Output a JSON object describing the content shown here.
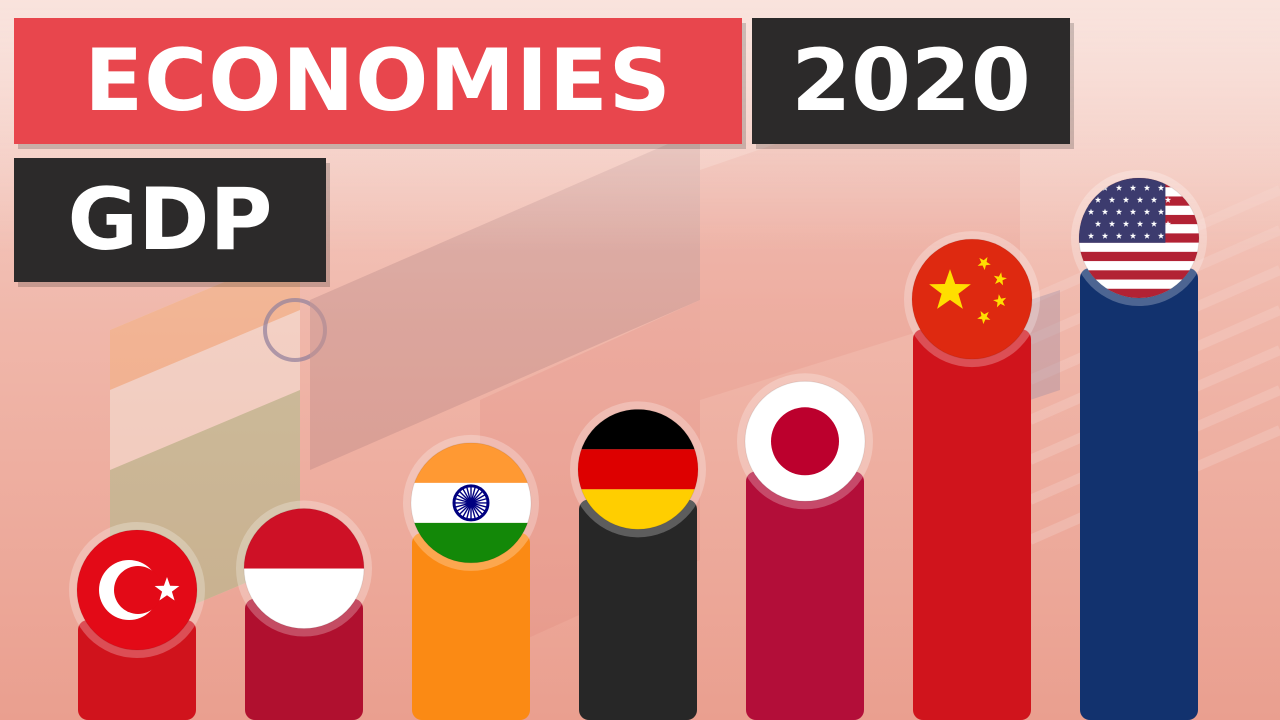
{
  "header": {
    "title": "ECONOMIES",
    "year": "2020",
    "subtitle": "GDP"
  },
  "colors": {
    "title_background": "#e8464d",
    "dark_background": "#2c2a2a"
  },
  "chart_data": {
    "type": "bar",
    "title": "ECONOMIES 2020 GDP",
    "categories": [
      "Turkey",
      "Indonesia",
      "India",
      "Germany",
      "Japan",
      "China",
      "United States"
    ],
    "series": [
      {
        "values": [
          0.72,
          1.06,
          2.66,
          3.85,
          5.06,
          14.72,
          20.94
        ],
        "colors": [
          "#d0131c",
          "#b0102f",
          "#fb8a14",
          "#272727",
          "#b30e39",
          "#d0141c",
          "#12326e"
        ],
        "flag_icons": [
          "turkey-flag-icon",
          "indonesia-flag-icon",
          "india-flag-icon",
          "germany-flag-icon",
          "japan-flag-icon",
          "china-flag-icon",
          "usa-flag-icon"
        ]
      }
    ],
    "axes_visible": false,
    "grid": false,
    "legend": "none"
  }
}
